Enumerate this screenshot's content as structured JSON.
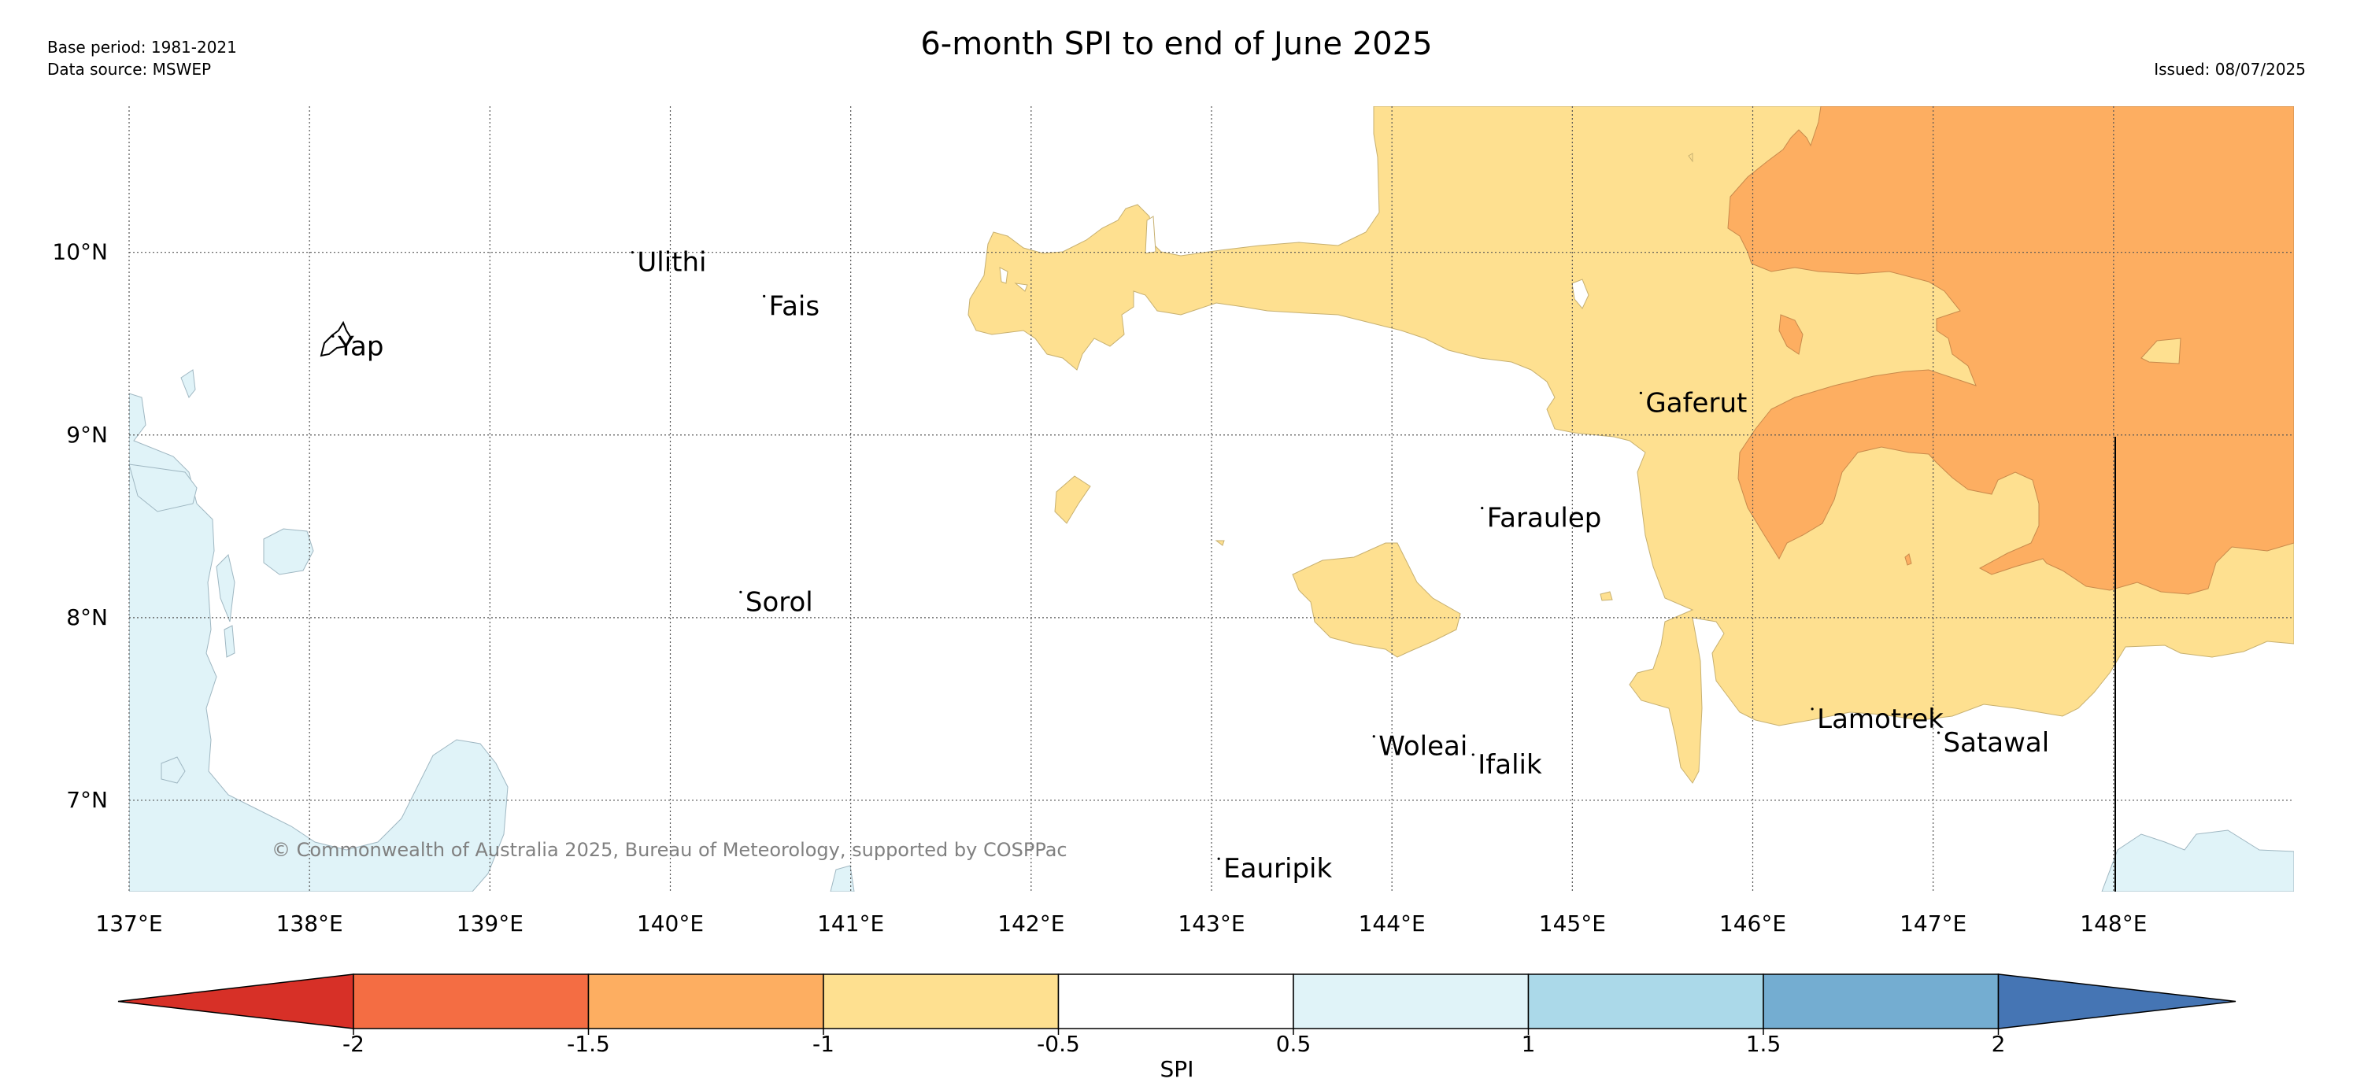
{
  "header": {
    "title": "6-month SPI to end of June 2025",
    "base_period": "Base period: 1981-2021",
    "data_source": "Data source: MSWEP",
    "issued": "Issued: 08/07/2025"
  },
  "map": {
    "lon_ticks": [
      "137°E",
      "138°E",
      "139°E",
      "140°E",
      "141°E",
      "142°E",
      "143°E",
      "144°E",
      "145°E",
      "146°E",
      "147°E",
      "148°E"
    ],
    "lat_ticks": [
      "10°N",
      "9°N",
      "8°N",
      "7°N"
    ],
    "lon_range": [
      137,
      149
    ],
    "lat_range": [
      6.5,
      10.8
    ],
    "gridlines": true,
    "copyright": "© Commonwealth of Australia 2025, Bureau of Meteorology, supported by COSPPac",
    "places": [
      {
        "name": "Ulithi",
        "lon": 139.79,
        "lat": 10.0
      },
      {
        "name": "Fais",
        "lon": 140.52,
        "lat": 9.76
      },
      {
        "name": "Yap",
        "lon": 138.13,
        "lat": 9.54
      },
      {
        "name": "Gaferut",
        "lon": 145.38,
        "lat": 9.23
      },
      {
        "name": "Faraulep",
        "lon": 144.5,
        "lat": 8.6
      },
      {
        "name": "Sorol",
        "lon": 140.39,
        "lat": 8.14
      },
      {
        "name": "Woleai",
        "lon": 143.9,
        "lat": 7.35
      },
      {
        "name": "Ifalik",
        "lon": 144.45,
        "lat": 7.25
      },
      {
        "name": "Lamotrek",
        "lon": 146.33,
        "lat": 7.5
      },
      {
        "name": "Satawal",
        "lon": 147.03,
        "lat": 7.37
      },
      {
        "name": "Eauripik",
        "lon": 143.04,
        "lat": 6.68
      }
    ]
  },
  "colorbar": {
    "label": "SPI",
    "ticks": [
      "-2",
      "-1.5",
      "-1",
      "-0.5",
      "0.5",
      "1",
      "1.5",
      "2"
    ],
    "colors": [
      "#d73027",
      "#f46d43",
      "#fdae61",
      "#fee090",
      "#ffffff",
      "#e0f3f8",
      "#abd9e9",
      "#74add1",
      "#4575b4"
    ]
  }
}
